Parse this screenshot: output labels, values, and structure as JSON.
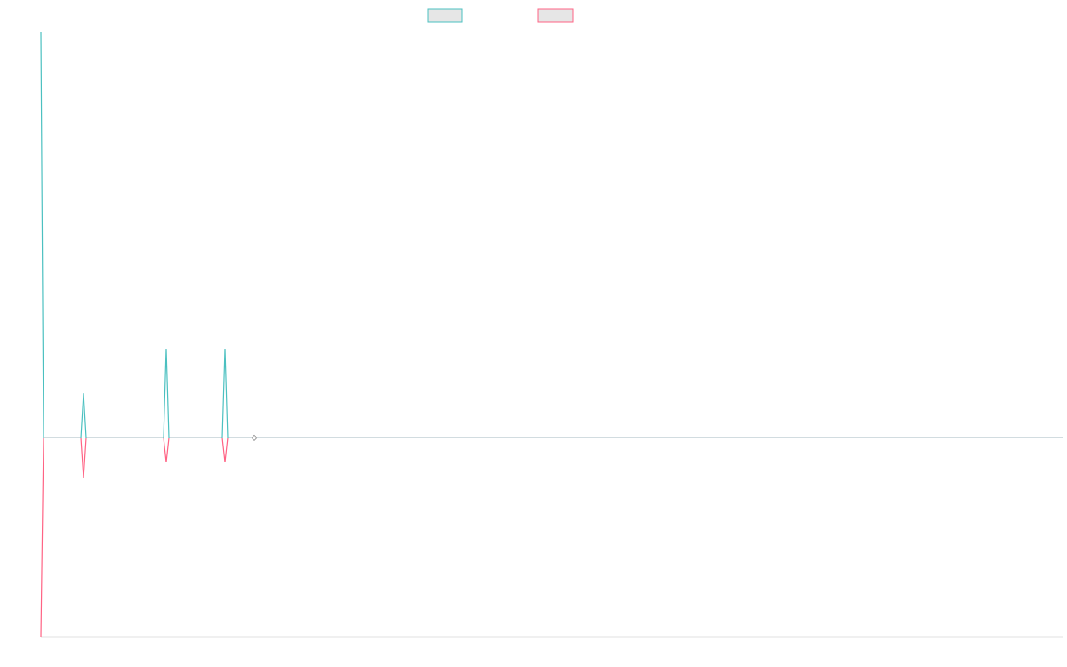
{
  "chart_data": {
    "type": "line",
    "x": [
      0,
      1,
      15,
      16,
      17,
      46,
      47,
      48,
      68,
      69,
      70,
      80,
      383
    ],
    "xlim": [
      0,
      383
    ],
    "ylim": [
      -0.49,
      1
    ],
    "series": [
      {
        "color": "#4bc0c0",
        "values": [
          1,
          0,
          0,
          0.11,
          0,
          0,
          0.22,
          0,
          0,
          0.22,
          0,
          0,
          0
        ]
      },
      {
        "color": "#ff6384",
        "values": [
          -0.49,
          0,
          0,
          -0.1,
          0,
          0,
          -0.06,
          0,
          0,
          -0.06,
          0,
          0,
          0
        ]
      }
    ]
  }
}
